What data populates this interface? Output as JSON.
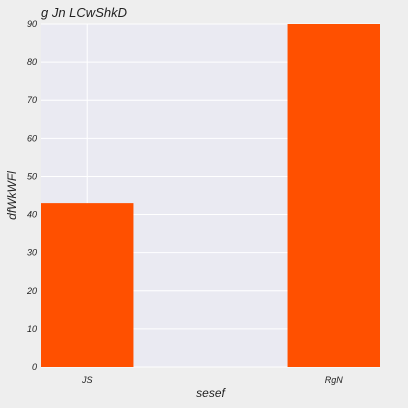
{
  "chart_data": {
    "type": "bar",
    "title": "g Jn LCwShkD",
    "xlabel": "sesef",
    "ylabel": "dfWkWFl",
    "categories": [
      "JS",
      "RgN"
    ],
    "values": [
      43,
      90
    ],
    "ylim": [
      0,
      90
    ],
    "yticks": [
      0,
      10,
      20,
      30,
      40,
      50,
      60,
      70,
      80,
      90
    ],
    "grid": true,
    "colors": {
      "bar": "#ff5000",
      "plot_background": "#eaeaf2",
      "figure_background": "#eeeeee",
      "grid": "#ffffff"
    }
  }
}
